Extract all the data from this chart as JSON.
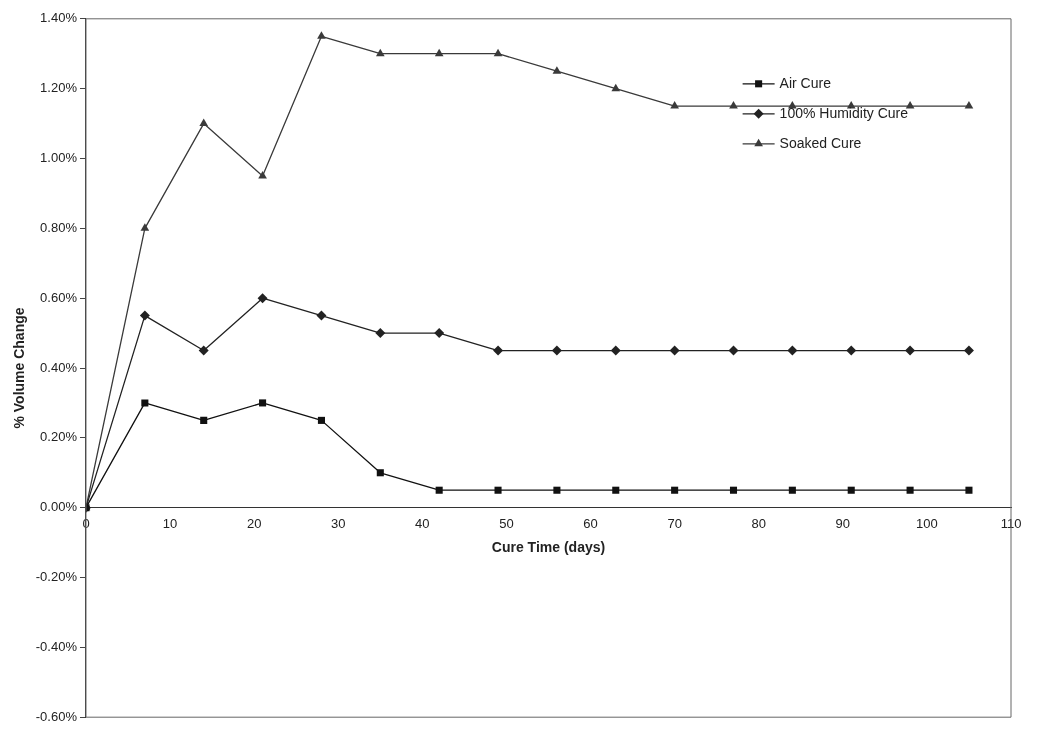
{
  "chart_data": {
    "type": "line",
    "xlabel": "Cure Time (days)",
    "ylabel": "% Volume Change",
    "x": [
      0,
      7,
      14,
      21,
      28,
      35,
      42,
      49,
      56,
      63,
      70,
      77,
      84,
      91,
      98,
      105
    ],
    "xlim": [
      0,
      110
    ],
    "xticks": [
      0,
      10,
      20,
      30,
      40,
      50,
      60,
      70,
      80,
      90,
      100,
      110
    ],
    "ylim": [
      -0.6,
      1.4
    ],
    "yticks": [
      {
        "value": -0.6,
        "label": "-0.60%"
      },
      {
        "value": -0.4,
        "label": "-0.40%"
      },
      {
        "value": -0.2,
        "label": "-0.20%"
      },
      {
        "value": 0,
        "label": "0.00%"
      },
      {
        "value": 0.2,
        "label": "0.20%"
      },
      {
        "value": 0.4,
        "label": "0.40%"
      },
      {
        "value": 0.6,
        "label": "0.60%"
      },
      {
        "value": 0.8,
        "label": "0.80%"
      },
      {
        "value": 1.0,
        "label": "1.00%"
      },
      {
        "value": 1.2,
        "label": "1.20%"
      },
      {
        "value": 1.4,
        "label": "1.40%"
      }
    ],
    "grid": false,
    "legend": "top right",
    "line_style": "solid",
    "series": [
      {
        "name": "Air Cure",
        "color": "#111111",
        "marker": "square",
        "values": [
          0,
          0.3,
          0.25,
          0.3,
          0.25,
          0.1,
          0.05,
          0.05,
          0.05,
          0.05,
          0.05,
          0.05,
          0.05,
          0.05,
          0.05,
          0.05
        ]
      },
      {
        "name": "100% Humidity Cure",
        "color": "#222222",
        "marker": "diamond",
        "values": [
          0,
          0.55,
          0.45,
          0.6,
          0.55,
          0.5,
          0.5,
          0.45,
          0.45,
          0.45,
          0.45,
          0.45,
          0.45,
          0.45,
          0.45,
          0.45
        ]
      },
      {
        "name": "Soaked Cure",
        "color": "#3a3a3a",
        "marker": "triangle",
        "values": [
          0,
          0.8,
          1.1,
          0.95,
          1.35,
          1.3,
          1.3,
          1.3,
          1.25,
          1.2,
          1.15,
          1.15,
          1.15,
          1.15,
          1.15,
          1.15
        ]
      }
    ]
  }
}
